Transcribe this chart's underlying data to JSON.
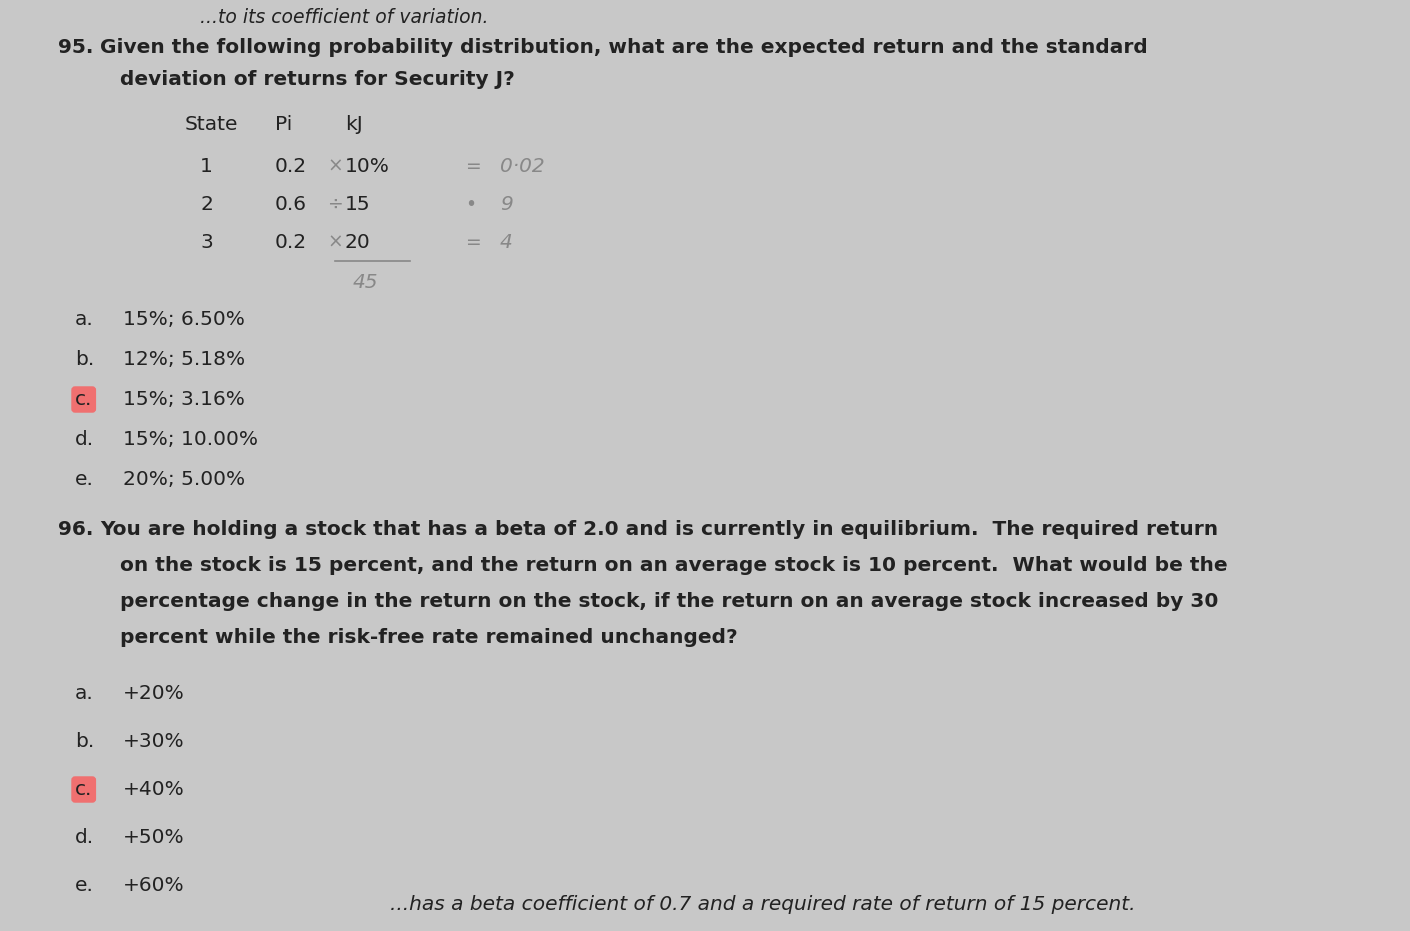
{
  "bg_color": "#c8c8c8",
  "text_color": "#222222",
  "q95_number": "95.",
  "q95_line1": "Given the following probability distribution, what are the expected return and the standard",
  "q95_line2": "deviation of returns for Security J?",
  "table_header": [
    "State",
    "Pi",
    "kJ"
  ],
  "table_rows": [
    [
      "1",
      "0.2",
      "10%"
    ],
    [
      "2",
      "0.6",
      "15"
    ],
    [
      "3",
      "0.2",
      "20"
    ]
  ],
  "hw_marks": [
    "×",
    "÷",
    "×"
  ],
  "hw_equals": [
    "=",
    "•",
    "="
  ],
  "hw_results": [
    "0·02",
    "9",
    "4"
  ],
  "hw_sum": "45",
  "q95_options": [
    [
      "a.",
      "15%; 6.50%",
      false
    ],
    [
      "b.",
      "12%; 5.18%",
      false
    ],
    [
      "c.",
      "15%; 3.16%",
      true
    ],
    [
      "d.",
      "15%; 10.00%",
      false
    ],
    [
      "e.",
      "20%; 5.00%",
      false
    ]
  ],
  "q96_number": "96.",
  "q96_lines": [
    "You are holding a stock that has a beta of 2.0 and is currently in equilibrium.  The required return",
    "on the stock is 15 percent, and the return on an average stock is 10 percent.  What would be the",
    "percentage change in the return on the stock, if the return on an average stock increased by 30",
    "percent while the risk-free rate remained unchanged?"
  ],
  "q96_options": [
    [
      "a.",
      "+20%",
      false
    ],
    [
      "b.",
      "+30%",
      false
    ],
    [
      "c.",
      "+40%",
      true
    ],
    [
      "d.",
      "+50%",
      false
    ],
    [
      "e.",
      "+60%",
      false
    ]
  ],
  "bottom_partial": "...has a beta coefficient of 0.7 and a required rate of return of 15 percent.",
  "highlight_color": "#f07070",
  "hw_color": "#888888",
  "font_size": 14.5,
  "font_size_bold": 15.0
}
